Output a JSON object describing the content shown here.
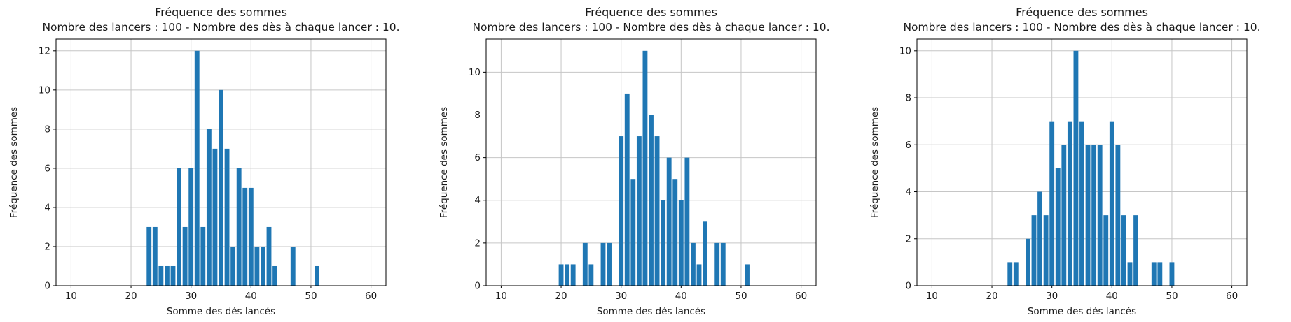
{
  "figure": {
    "background": "#ffffff",
    "bar_color": "#1f77b4",
    "grid_color": "#c6c6c6",
    "spine_color": "#000000",
    "text_color": "#1a1a1a"
  },
  "chart_data": [
    {
      "type": "bar",
      "title": "Fréquence des sommes",
      "subtitle": "Nombre des lancers : 100 - Nombre des dès à chaque lancer : 10.",
      "xlabel": "Somme des dés lancés",
      "ylabel": "Fréquence des sommes",
      "x": [
        23,
        24,
        25,
        26,
        27,
        28,
        29,
        30,
        31,
        32,
        33,
        34,
        35,
        36,
        37,
        38,
        39,
        40,
        41,
        42,
        43,
        44,
        47,
        51
      ],
      "values": [
        3,
        3,
        1,
        1,
        1,
        6,
        3,
        6,
        12,
        3,
        8,
        7,
        10,
        7,
        2,
        6,
        5,
        5,
        2,
        2,
        3,
        1,
        2,
        1
      ],
      "x_ticks": [
        10,
        20,
        30,
        40,
        50,
        60
      ],
      "y_ticks": [
        0,
        2,
        4,
        6,
        8,
        10,
        12
      ],
      "xlim": [
        7.5,
        62.5
      ],
      "ylim": [
        0,
        12.6
      ],
      "grid": true,
      "legend": null
    },
    {
      "type": "bar",
      "title": "Fréquence des sommes",
      "subtitle": "Nombre des lancers : 100 - Nombre des dès à chaque lancer : 10.",
      "xlabel": "Somme des dés lancés",
      "ylabel": "Fréquence des sommes",
      "x": [
        20,
        21,
        22,
        24,
        25,
        27,
        28,
        30,
        31,
        32,
        33,
        34,
        35,
        36,
        37,
        38,
        39,
        40,
        41,
        42,
        43,
        44,
        46,
        47,
        51
      ],
      "values": [
        1,
        1,
        1,
        2,
        1,
        2,
        2,
        7,
        9,
        5,
        7,
        11,
        8,
        7,
        4,
        6,
        5,
        4,
        6,
        2,
        1,
        3,
        2,
        2,
        1
      ],
      "x_ticks": [
        10,
        20,
        30,
        40,
        50,
        60
      ],
      "y_ticks": [
        0,
        2,
        4,
        6,
        8,
        10
      ],
      "xlim": [
        7.5,
        62.5
      ],
      "ylim": [
        0,
        11.55
      ],
      "grid": true,
      "legend": null
    },
    {
      "type": "bar",
      "title": "Fréquence des sommes",
      "subtitle": "Nombre des lancers : 100 - Nombre des dès à chaque lancer : 10.",
      "xlabel": "Somme des dés lancés",
      "ylabel": "Fréquence des sommes",
      "x": [
        23,
        24,
        26,
        27,
        28,
        29,
        30,
        31,
        32,
        33,
        34,
        35,
        36,
        37,
        38,
        39,
        40,
        41,
        42,
        43,
        44,
        47,
        48,
        50
      ],
      "values": [
        1,
        1,
        2,
        3,
        4,
        3,
        7,
        5,
        6,
        7,
        10,
        7,
        6,
        6,
        6,
        3,
        7,
        6,
        3,
        1,
        3,
        1,
        1,
        1
      ],
      "x_ticks": [
        10,
        20,
        30,
        40,
        50,
        60
      ],
      "y_ticks": [
        0,
        2,
        4,
        6,
        8,
        10
      ],
      "xlim": [
        7.5,
        62.5
      ],
      "ylim": [
        0,
        10.5
      ],
      "grid": true,
      "legend": null
    }
  ]
}
